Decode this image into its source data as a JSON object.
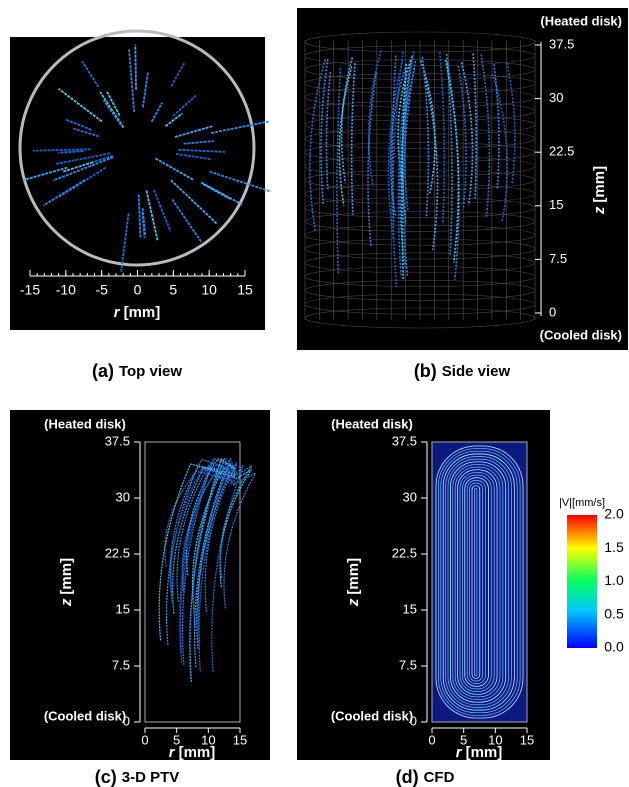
{
  "panels": [
    {
      "letter": "(a)",
      "caption": "Top view",
      "x_var": "r",
      "x_unit": "[mm]",
      "x_ticks": [
        "-15",
        "-10",
        "-5",
        "0",
        "5",
        "10",
        "15"
      ]
    },
    {
      "letter": "(b)",
      "caption": "Side view",
      "top_label": "(Heated disk)",
      "bottom_label": "(Cooled disk)",
      "z_var": "z",
      "z_unit": "[mm]",
      "z_ticks": [
        "0",
        "7.5",
        "15",
        "22.5",
        "30",
        "37.5"
      ]
    },
    {
      "letter": "(c)",
      "caption": "3-D PTV",
      "top_label": "(Heated disk)",
      "bottom_label": "(Cooled disk)",
      "z_var": "z",
      "z_unit": "[mm]",
      "z_ticks": [
        "0",
        "7.5",
        "15",
        "22.5",
        "30",
        "37.5"
      ],
      "x_var": "r",
      "x_unit": "[mm]",
      "x_ticks": [
        "0",
        "5",
        "10",
        "15"
      ]
    },
    {
      "letter": "(d)",
      "caption": "CFD",
      "top_label": "(Heated disk)",
      "bottom_label": "(Cooled disk)",
      "z_var": "z",
      "z_unit": "[mm]",
      "z_ticks": [
        "0",
        "7.5",
        "15",
        "22.5",
        "30",
        "37.5"
      ],
      "x_var": "r",
      "x_unit": "[mm]",
      "x_ticks": [
        "0",
        "5",
        "10",
        "15"
      ]
    }
  ],
  "colorbar": {
    "title": "|V|[mm/s]",
    "ticks": [
      "0.0",
      "0.5",
      "1.0",
      "1.5",
      "2.0"
    ]
  }
}
